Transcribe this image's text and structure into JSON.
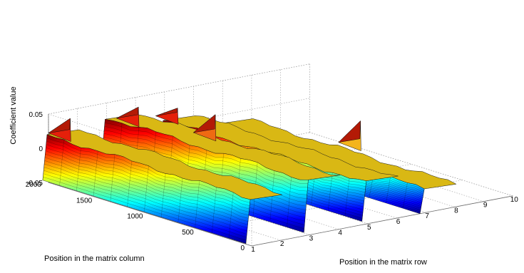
{
  "chart_data": {
    "type": "surface-3d",
    "title": "",
    "xlabel": "Position in the matrix row",
    "ylabel": "Position in the matrix column",
    "zlabel": "Coefficient value",
    "xlim": [
      1,
      10
    ],
    "ylim": [
      0,
      2000
    ],
    "zlim": [
      -0.05,
      0.05
    ],
    "x_ticks": [
      "1",
      "2",
      "3",
      "4",
      "5",
      "6",
      "7",
      "8",
      "9",
      "10"
    ],
    "y_ticks": [
      "0",
      "500",
      "1000",
      "1500",
      "2000"
    ],
    "z_ticks": [
      "-0.05",
      "0",
      "0.05"
    ],
    "grid": true,
    "colormap": "jet",
    "ridges": [
      {
        "x": 1.5,
        "z_top": 0.02,
        "z_base": -0.045
      },
      {
        "x": 3.5,
        "z_top": 0.03,
        "z_base": -0.045
      },
      {
        "x": 5.5,
        "z_top": 0.01,
        "z_base": -0.045
      },
      {
        "x": 7.5,
        "z_top": -0.015,
        "z_base": -0.05
      }
    ],
    "peaks": [
      {
        "x": 1.4,
        "y": 1900,
        "z": 0.045
      },
      {
        "x": 3.4,
        "y": 1800,
        "z": 0.05
      },
      {
        "x": 4.4,
        "y": 1700,
        "z": 0.045
      },
      {
        "x": 5.0,
        "y": 1500,
        "z": 0.04
      },
      {
        "x": 8.6,
        "y": 1100,
        "z": 0.02
      }
    ]
  }
}
